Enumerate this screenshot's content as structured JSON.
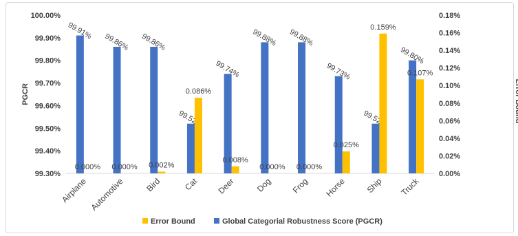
{
  "chart_data": {
    "type": "bar",
    "categories": [
      "Airplane",
      "Automotive",
      "Bird",
      "Cat",
      "Deer",
      "Dog",
      "Frog",
      "Horse",
      "Ship",
      "Truck"
    ],
    "series": [
      {
        "name": "Global Categorial Robustness Score (PGCR)",
        "axis": "left",
        "color": "#4472C4",
        "values": [
          99.91,
          99.86,
          99.86,
          99.52,
          99.74,
          99.88,
          99.88,
          99.73,
          99.52,
          99.8
        ],
        "labels": [
          "99.91%",
          "99.86%",
          "99.86%",
          "99.52%",
          "99.74%",
          "99.88%",
          "99.88%",
          "99.73%",
          "99.52%",
          "99.80%"
        ]
      },
      {
        "name": "Error Bound",
        "axis": "right",
        "color": "#FFC000",
        "values": [
          0.0,
          0.0,
          0.002,
          0.086,
          0.008,
          0.0,
          0.0,
          0.025,
          0.159,
          0.107
        ],
        "labels": [
          "0.000%",
          "0.000%",
          "0.002%",
          "0.086%",
          "0.008%",
          "0.000%",
          "0.000%",
          "0.025%",
          "0.159%",
          "0.107%"
        ]
      }
    ],
    "left_axis": {
      "title": "PGCR",
      "ylim": [
        99.3,
        100.0
      ],
      "ticks": [
        99.3,
        99.4,
        99.5,
        99.6,
        99.7,
        99.8,
        99.9,
        100.0
      ],
      "tick_labels": [
        "99.30%",
        "99.40%",
        "99.50%",
        "99.60%",
        "99.70%",
        "99.80%",
        "99.90%",
        "100.00%"
      ]
    },
    "right_axis": {
      "title": "Error Bound",
      "ylim": [
        0.0,
        0.18
      ],
      "ticks": [
        0.0,
        0.02,
        0.04,
        0.06,
        0.08,
        0.1,
        0.12,
        0.14,
        0.16,
        0.18
      ],
      "tick_labels": [
        "0.00%",
        "0.02%",
        "0.04%",
        "0.06%",
        "0.08%",
        "0.10%",
        "0.12%",
        "0.14%",
        "0.16%",
        "0.18%"
      ]
    },
    "legend": {
      "position": "bottom",
      "entries": [
        "Error Bound",
        "Global Categorial Robustness Score (PGCR)"
      ]
    },
    "grid": false
  }
}
